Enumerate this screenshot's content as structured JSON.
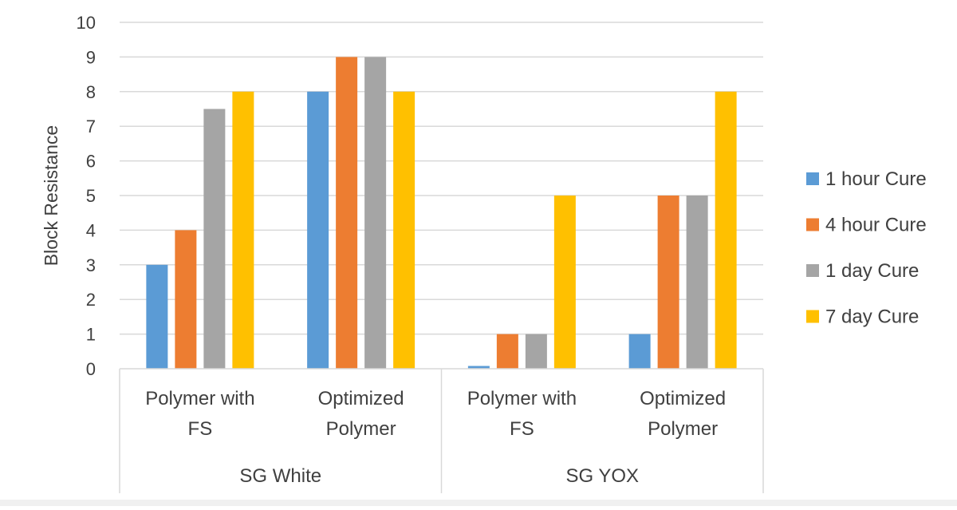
{
  "chart_data": {
    "type": "bar",
    "ylabel": "Block Resistance",
    "ylim": [
      0,
      10
    ],
    "yticks": [
      0,
      1,
      2,
      3,
      4,
      5,
      6,
      7,
      8,
      9,
      10
    ],
    "categories": [
      "Polymer with FS",
      "Optimized Polymer",
      "Polymer with FS",
      "Optimized Polymer"
    ],
    "category_lines": [
      [
        "Polymer with",
        "FS"
      ],
      [
        "Optimized",
        "Polymer"
      ],
      [
        "Polymer with",
        "FS"
      ],
      [
        "Optimized",
        "Polymer"
      ]
    ],
    "groups": [
      {
        "label": "SG White",
        "categories": [
          0,
          1
        ]
      },
      {
        "label": "SG YOX",
        "categories": [
          2,
          3
        ]
      }
    ],
    "series": [
      {
        "name": "1 hour Cure",
        "color": "#5B9BD5",
        "values": [
          3,
          8,
          0.08,
          1
        ]
      },
      {
        "name": "4 hour Cure",
        "color": "#ED7D31",
        "values": [
          4,
          9,
          1,
          5
        ]
      },
      {
        "name": "1 day Cure",
        "color": "#A5A5A5",
        "values": [
          7.5,
          9,
          1,
          5
        ]
      },
      {
        "name": "7 day Cure",
        "color": "#FFC000",
        "values": [
          8,
          8,
          5,
          8
        ]
      }
    ],
    "grid": true,
    "legend_position": "right"
  }
}
